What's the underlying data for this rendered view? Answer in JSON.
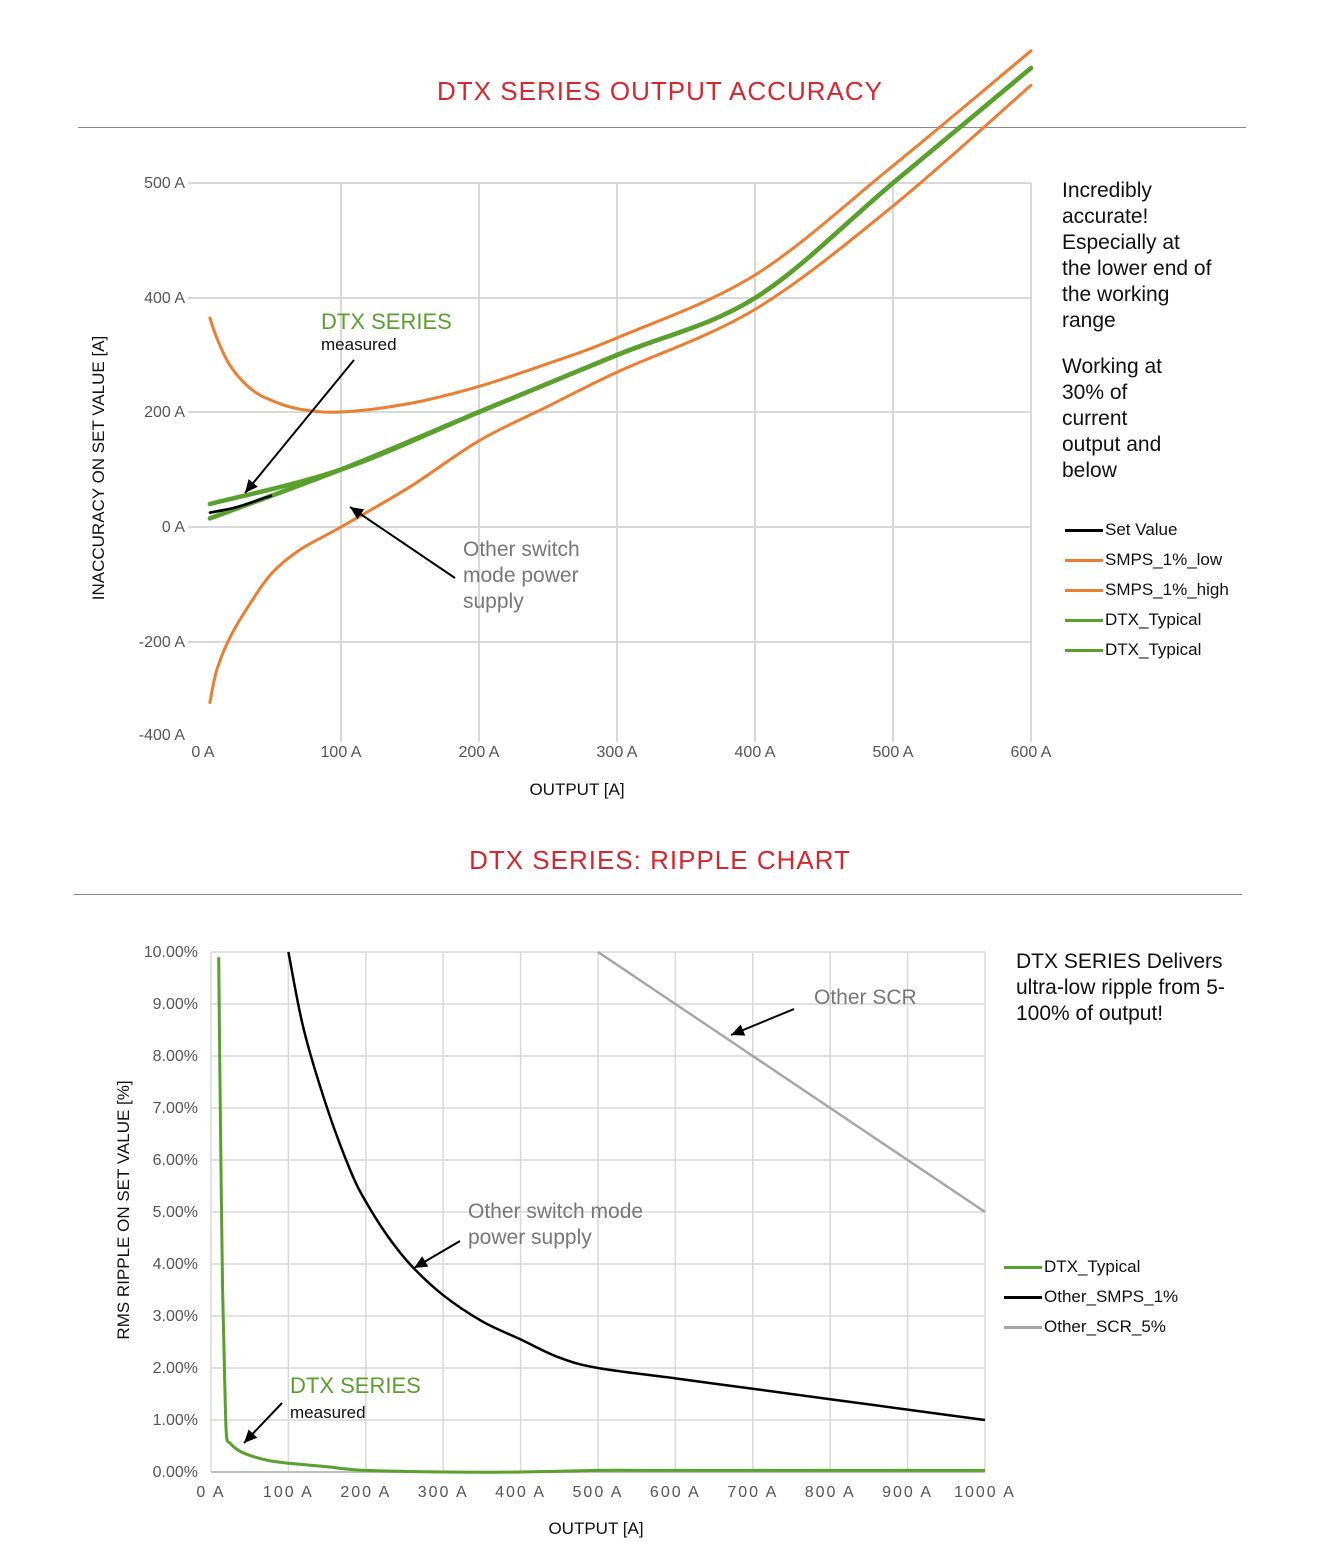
{
  "chart_data": [
    {
      "type": "line",
      "title": "DTX SERIES OUTPUT ACCURACY",
      "xlabel": "OUTPUT [A]",
      "ylabel": "INACCURACY ON SET VALUE [A]",
      "xlim": [
        0,
        600
      ],
      "ylim": [
        -400,
        500
      ],
      "x_ticks": [
        "0 A",
        "100 A",
        "200 A",
        "300 A",
        "400 A",
        "500 A",
        "600 A"
      ],
      "y_ticks": [
        "500 A",
        "400 A",
        "200 A",
        "0 A",
        "-200 A",
        "-400 A"
      ],
      "y_tick_values": [
        500,
        400,
        200,
        0,
        -200,
        -400
      ],
      "grid": true,
      "legend_position": "right",
      "series": [
        {
          "name": "Set Value",
          "color": "#000000",
          "x": [
            5,
            25,
            50,
            100,
            200,
            300,
            400,
            500,
            600
          ],
          "y": [
            25,
            35,
            55,
            100,
            200,
            300,
            400,
            500,
            600
          ]
        },
        {
          "name": "SMPS_1%_low",
          "color": "#ed7d31",
          "x": [
            5,
            10,
            20,
            35,
            50,
            70,
            100,
            150,
            200,
            250,
            300,
            400,
            500,
            600
          ],
          "y": [
            -330,
            -260,
            -190,
            -130,
            -80,
            -40,
            0,
            70,
            150,
            210,
            270,
            380,
            480,
            585
          ]
        },
        {
          "name": "SMPS_1%_high",
          "color": "#ed7d31",
          "x": [
            5,
            10,
            20,
            35,
            50,
            70,
            100,
            150,
            200,
            250,
            300,
            400,
            500,
            600
          ],
          "y": [
            365,
            330,
            280,
            240,
            220,
            205,
            200,
            215,
            245,
            285,
            330,
            420,
            515,
            615
          ]
        },
        {
          "name": "DTX_Typical",
          "color": "#5aa02c",
          "x": [
            5,
            100,
            200,
            300,
            400,
            500,
            600
          ],
          "y": [
            40,
            100,
            200,
            300,
            400,
            500,
            600
          ]
        },
        {
          "name": "DTX_Typical",
          "color": "#5aa02c",
          "x": [
            5,
            100,
            200,
            300,
            400,
            500,
            600
          ],
          "y": [
            15,
            100,
            200,
            300,
            400,
            500,
            600
          ]
        }
      ],
      "annotations": {
        "dtx_label": "DTX SERIES",
        "dtx_sub": "measured",
        "smps_label": "Other switch mode power supply",
        "note1": "Incredibly accurate! Especially at the lower end of the working range",
        "note2": "Working at 30% of current output and below"
      }
    },
    {
      "type": "line",
      "title": "DTX SERIES: RIPPLE CHART",
      "xlabel": "OUTPUT [A]",
      "ylabel": "RMS RIPPLE ON SET VALUE [%]",
      "xlim": [
        0,
        1000
      ],
      "ylim": [
        0,
        10
      ],
      "x_ticks": [
        "0 A",
        "100 A",
        "200 A",
        "300 A",
        "400 A",
        "500 A",
        "600 A",
        "700 A",
        "800 A",
        "900 A",
        "1000 A"
      ],
      "y_ticks": [
        "10.00%",
        "9.00%",
        "8.00%",
        "7.00%",
        "6.00%",
        "5.00%",
        "4.00%",
        "3.00%",
        "2.00%",
        "1.00%",
        "0.00%"
      ],
      "grid": true,
      "legend_position": "right",
      "series": [
        {
          "name": "DTX_Typical",
          "color": "#5aa02c",
          "x": [
            10,
            12,
            15,
            18,
            20,
            25,
            35,
            50,
            75,
            100,
            150,
            200,
            300,
            400,
            500,
            600,
            800,
            1000
          ],
          "y": [
            9.9,
            7.0,
            3.5,
            1.6,
            0.7,
            0.55,
            0.42,
            0.32,
            0.22,
            0.17,
            0.1,
            0.03,
            0.0,
            0.0,
            0.03,
            0.03,
            0.03,
            0.03
          ]
        },
        {
          "name": "Other_SMPS_1%",
          "color": "#000000",
          "x": [
            100,
            120,
            150,
            180,
            200,
            230,
            260,
            300,
            350,
            400,
            450,
            500,
            600,
            700,
            800,
            900,
            1000
          ],
          "y": [
            10,
            8.5,
            7.0,
            5.8,
            5.2,
            4.5,
            3.95,
            3.4,
            2.9,
            2.55,
            2.2,
            2.0,
            1.8,
            1.6,
            1.4,
            1.2,
            1.0
          ]
        },
        {
          "name": "Other_SCR_5%",
          "color": "#a6a6a6",
          "x": [
            500,
            600,
            700,
            800,
            900,
            1000
          ],
          "y": [
            10,
            9.0,
            8.0,
            7.0,
            6.0,
            5.0
          ]
        }
      ],
      "annotations": {
        "dtx_label": "DTX SERIES",
        "dtx_sub": "measured",
        "smps_label": "Other switch mode power supply",
        "scr_label": "Other SCR",
        "note": "DTX SERIES Delivers ultra-low ripple from 5-100% of output!"
      }
    }
  ]
}
